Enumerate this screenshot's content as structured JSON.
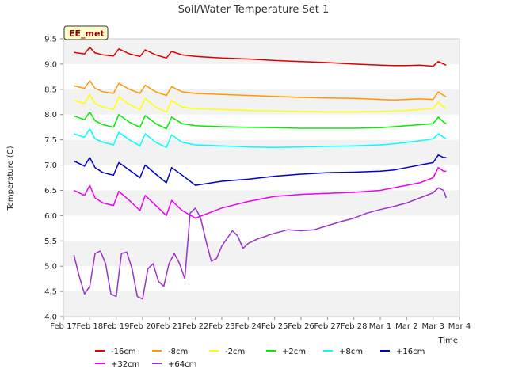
{
  "chart_data": {
    "type": "line",
    "title": "Soil/Water Temperature Set 1",
    "xlabel": "Time",
    "ylabel": "Temperature (C)",
    "badge": "EE_met",
    "x_ticks": [
      "Feb 17",
      "Feb 18",
      "Feb 19",
      "Feb 20",
      "Feb 21",
      "Feb 22",
      "Feb 23",
      "Feb 24",
      "Feb 25",
      "Feb 26",
      "Feb 27",
      "Feb 28",
      "Mar 1",
      "Mar 2",
      "Mar 3",
      "Mar 4"
    ],
    "y_ticks": [
      "4.0",
      "4.5",
      "5.0",
      "5.5",
      "6.0",
      "6.5",
      "7.0",
      "7.5",
      "8.0",
      "8.5",
      "9.0",
      "9.5"
    ],
    "xlim": [
      0,
      15
    ],
    "ylim": [
      4.0,
      9.5
    ],
    "x_unit_note": "days since Feb 17",
    "grid_bands": true,
    "legend_position": "bottom",
    "series": [
      {
        "name": "-16cm",
        "color": "#dd0000",
        "x": [
          0.4,
          0.8,
          1.0,
          1.2,
          1.5,
          1.9,
          2.1,
          2.5,
          2.9,
          3.1,
          3.5,
          3.9,
          4.1,
          4.5,
          5,
          6,
          7,
          8,
          9,
          10,
          11,
          12,
          12.5,
          13,
          13.5,
          14,
          14.2,
          14.4,
          14.5
        ],
        "y": [
          9.23,
          9.2,
          9.33,
          9.22,
          9.18,
          9.16,
          9.3,
          9.2,
          9.15,
          9.28,
          9.18,
          9.12,
          9.25,
          9.18,
          9.15,
          9.12,
          9.1,
          9.07,
          9.05,
          9.03,
          9.0,
          8.98,
          8.97,
          8.97,
          8.98,
          8.96,
          9.05,
          9.0,
          8.98
        ]
      },
      {
        "name": "-8cm",
        "color": "#ff9900",
        "x": [
          0.4,
          0.8,
          1.0,
          1.2,
          1.5,
          1.9,
          2.1,
          2.5,
          2.9,
          3.1,
          3.5,
          3.9,
          4.1,
          4.5,
          5,
          6,
          7,
          8,
          9,
          10,
          11,
          12,
          12.5,
          13,
          13.5,
          14,
          14.2,
          14.4,
          14.5
        ],
        "y": [
          8.57,
          8.52,
          8.67,
          8.52,
          8.45,
          8.42,
          8.62,
          8.5,
          8.42,
          8.58,
          8.45,
          8.38,
          8.55,
          8.45,
          8.42,
          8.4,
          8.38,
          8.36,
          8.34,
          8.33,
          8.32,
          8.3,
          8.29,
          8.3,
          8.31,
          8.3,
          8.45,
          8.38,
          8.35
        ]
      },
      {
        "name": "-2cm",
        "color": "#ffff00",
        "x": [
          0.4,
          0.8,
          1.0,
          1.2,
          1.5,
          1.9,
          2.1,
          2.5,
          2.9,
          3.1,
          3.5,
          3.9,
          4.1,
          4.5,
          5,
          6,
          7,
          8,
          9,
          10,
          11,
          12,
          12.5,
          13,
          13.5,
          14,
          14.2,
          14.4,
          14.5
        ],
        "y": [
          8.28,
          8.22,
          8.4,
          8.22,
          8.15,
          8.1,
          8.35,
          8.2,
          8.1,
          8.32,
          8.15,
          8.05,
          8.28,
          8.15,
          8.12,
          8.1,
          8.08,
          8.07,
          8.06,
          8.05,
          8.05,
          8.06,
          8.07,
          8.08,
          8.1,
          8.12,
          8.25,
          8.15,
          8.12
        ]
      },
      {
        "name": "+2cm",
        "color": "#00ee00",
        "x": [
          0.4,
          0.8,
          1.0,
          1.2,
          1.5,
          1.9,
          2.1,
          2.5,
          2.9,
          3.1,
          3.5,
          3.9,
          4.1,
          4.5,
          5,
          6,
          7,
          8,
          9,
          10,
          11,
          12,
          12.5,
          13,
          13.5,
          14,
          14.2,
          14.4,
          14.5
        ],
        "y": [
          7.97,
          7.9,
          8.05,
          7.88,
          7.8,
          7.75,
          8.0,
          7.85,
          7.75,
          7.98,
          7.82,
          7.72,
          7.95,
          7.82,
          7.78,
          7.76,
          7.75,
          7.74,
          7.73,
          7.73,
          7.73,
          7.74,
          7.76,
          7.78,
          7.8,
          7.82,
          7.95,
          7.85,
          7.82
        ]
      },
      {
        "name": "+8cm",
        "color": "#00ffff",
        "x": [
          0.4,
          0.8,
          1.0,
          1.2,
          1.5,
          1.9,
          2.1,
          2.5,
          2.9,
          3.1,
          3.5,
          3.9,
          4.1,
          4.5,
          5,
          6,
          7,
          8,
          9,
          10,
          11,
          12,
          12.5,
          13,
          13.5,
          14,
          14.2,
          14.4,
          14.5
        ],
        "y": [
          7.62,
          7.55,
          7.72,
          7.52,
          7.45,
          7.4,
          7.65,
          7.5,
          7.38,
          7.62,
          7.45,
          7.35,
          7.6,
          7.45,
          7.4,
          7.38,
          7.36,
          7.35,
          7.36,
          7.37,
          7.38,
          7.4,
          7.42,
          7.45,
          7.48,
          7.52,
          7.62,
          7.55,
          7.52
        ]
      },
      {
        "name": "+16cm",
        "color": "#0000cc",
        "x": [
          0.4,
          0.8,
          1.0,
          1.2,
          1.5,
          1.9,
          2.1,
          2.5,
          2.9,
          3.1,
          3.5,
          3.9,
          4.1,
          4.5,
          5,
          6,
          7,
          8,
          9,
          10,
          11,
          12,
          12.5,
          13,
          13.5,
          14,
          14.2,
          14.4,
          14.5
        ],
        "y": [
          7.08,
          6.98,
          7.15,
          6.95,
          6.85,
          6.8,
          7.05,
          6.9,
          6.75,
          7.0,
          6.82,
          6.65,
          6.95,
          6.8,
          6.6,
          6.68,
          6.72,
          6.78,
          6.82,
          6.85,
          6.86,
          6.88,
          6.9,
          6.95,
          7.0,
          7.05,
          7.2,
          7.15,
          7.15
        ]
      },
      {
        "name": "+32cm",
        "color": "#ee00ee",
        "x": [
          0.4,
          0.8,
          1.0,
          1.2,
          1.5,
          1.9,
          2.1,
          2.5,
          2.9,
          3.1,
          3.5,
          3.9,
          4.1,
          4.5,
          5,
          6,
          7,
          8,
          9,
          10,
          11,
          12,
          12.5,
          13,
          13.5,
          14,
          14.2,
          14.4,
          14.5
        ],
        "y": [
          6.5,
          6.4,
          6.6,
          6.35,
          6.25,
          6.2,
          6.48,
          6.3,
          6.1,
          6.4,
          6.2,
          6.0,
          6.3,
          6.1,
          5.95,
          6.15,
          6.28,
          6.38,
          6.42,
          6.44,
          6.46,
          6.5,
          6.55,
          6.6,
          6.65,
          6.75,
          6.95,
          6.88,
          6.88
        ]
      },
      {
        "name": "+64cm",
        "color": "#9933cc",
        "x": [
          0.4,
          0.6,
          0.8,
          1.0,
          1.2,
          1.4,
          1.6,
          1.8,
          2.0,
          2.2,
          2.4,
          2.6,
          2.8,
          3.0,
          3.2,
          3.4,
          3.6,
          3.8,
          4.0,
          4.2,
          4.4,
          4.6,
          4.8,
          5.0,
          5.2,
          5.4,
          5.6,
          5.8,
          6.0,
          6.2,
          6.4,
          6.6,
          6.8,
          7.0,
          7.2,
          7.4,
          7.6,
          7.8,
          8.0,
          8.5,
          9.0,
          9.5,
          10.0,
          10.5,
          11.0,
          11.5,
          12.0,
          12.5,
          13.0,
          13.5,
          14.0,
          14.2,
          14.4,
          14.5
        ],
        "y": [
          5.22,
          4.8,
          4.45,
          4.6,
          5.25,
          5.3,
          5.05,
          4.45,
          4.4,
          5.25,
          5.28,
          4.95,
          4.4,
          4.35,
          4.95,
          5.05,
          4.7,
          4.6,
          5.05,
          5.25,
          5.05,
          4.75,
          6.05,
          6.15,
          5.95,
          5.5,
          5.1,
          5.15,
          5.4,
          5.55,
          5.7,
          5.6,
          5.35,
          5.45,
          5.5,
          5.55,
          5.58,
          5.62,
          5.65,
          5.72,
          5.7,
          5.72,
          5.8,
          5.88,
          5.95,
          6.05,
          6.12,
          6.18,
          6.25,
          6.35,
          6.45,
          6.55,
          6.5,
          6.35
        ]
      }
    ]
  }
}
